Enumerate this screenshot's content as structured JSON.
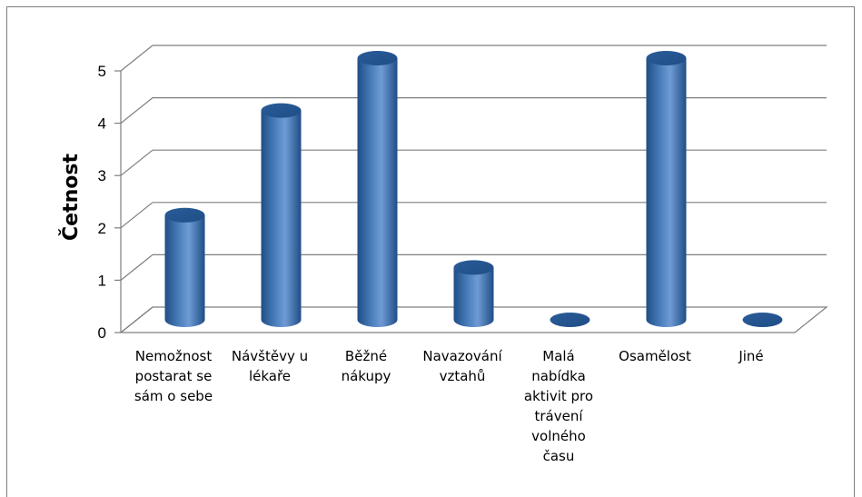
{
  "chart_data": {
    "type": "bar",
    "style": "3d-cylinder",
    "categories": [
      [
        "Nemožnost",
        "postarat se",
        "sám o sebe"
      ],
      [
        "Návštěvy u",
        "lékaře"
      ],
      [
        "Běžné",
        "nákupy"
      ],
      [
        "Navazování",
        "vztahů"
      ],
      [
        "Malá",
        "nabídka",
        "aktivit pro",
        "trávení",
        "volného",
        "času"
      ],
      [
        "Osamělost"
      ],
      [
        "Jiné"
      ]
    ],
    "values": [
      2,
      4,
      5,
      1,
      0,
      5,
      0
    ],
    "ylabel": "Četnost",
    "xlabel": "",
    "ylim": [
      0,
      5
    ],
    "yticks": [
      "0",
      "1",
      "2",
      "3",
      "4",
      "5"
    ],
    "grid": true,
    "legend": "none",
    "colors": {
      "bar": "#4a7ebb",
      "bar_dark": "#1f4e86",
      "bar_light": "#8fb4e3",
      "grid": "#7f7f7f",
      "frame": "#7f7f7f"
    }
  }
}
